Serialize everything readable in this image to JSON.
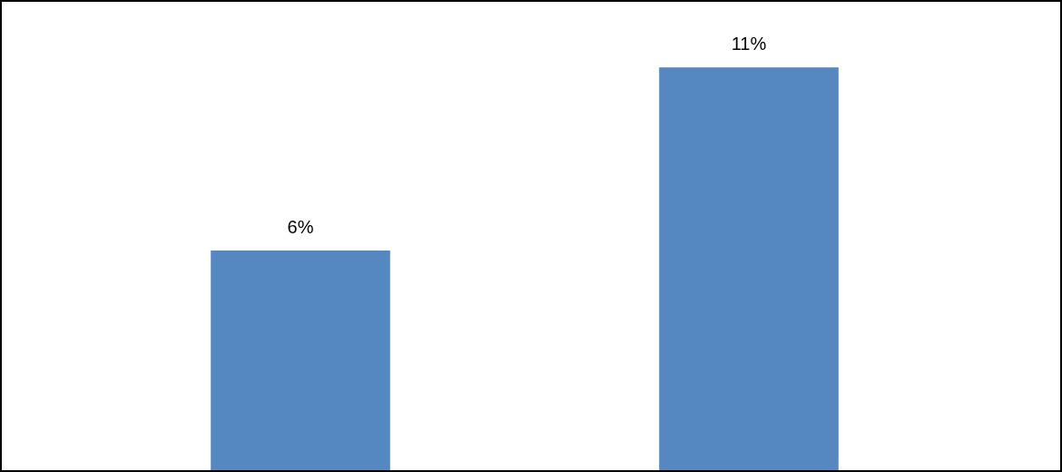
{
  "chart_data": {
    "type": "bar",
    "categories": [
      null,
      null
    ],
    "values": [
      6,
      11
    ],
    "value_labels": [
      "6%",
      "11%"
    ],
    "color": "#5588c1"
  }
}
